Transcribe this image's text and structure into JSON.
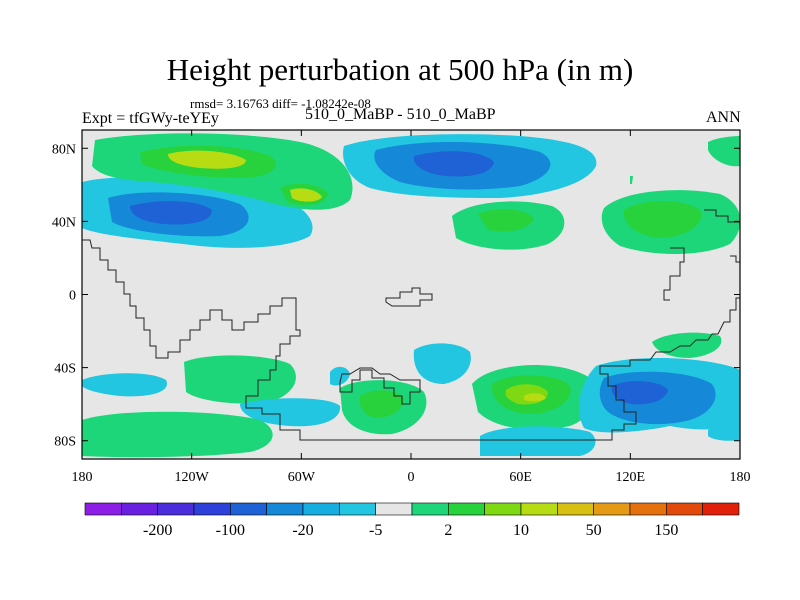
{
  "chart_data": {
    "type": "contour-map",
    "title": "Height perturbation at 500 hPa (in m)",
    "subtitle_left": "Expt = tfGWy-teYEy",
    "subtitle_center": "510_0_MaBP - 510_0_MaBP",
    "subtitle_right": "ANN",
    "stats_text": "rmsd= 3.16763 diff= -1.08242e-08",
    "x_axis": {
      "range": [
        -180,
        180
      ],
      "ticks": [
        -180,
        -120,
        -60,
        0,
        60,
        120,
        180
      ],
      "tick_labels": [
        "180",
        "120W",
        "60W",
        "0",
        "60E",
        "120E",
        "180"
      ]
    },
    "y_axis": {
      "range": [
        -90,
        90
      ],
      "ticks": [
        80,
        40,
        0,
        -40,
        -80
      ],
      "tick_labels": [
        "80N",
        "40N",
        "0",
        "40S",
        "80S"
      ]
    },
    "colorbar": {
      "colors": [
        "#8c1ee6",
        "#6a20e0",
        "#4b2ddc",
        "#2e40da",
        "#1e62d6",
        "#1688d8",
        "#16aee0",
        "#22c6e0",
        "#e6e6e6",
        "#1ed67a",
        "#28d23c",
        "#7ed812",
        "#b8dc14",
        "#d8c012",
        "#e49a14",
        "#e4700e",
        "#e24a0c",
        "#e0200a"
      ],
      "tick_labels": [
        "-200",
        "-100",
        "-20",
        "-5",
        "2",
        "10",
        "50",
        "150"
      ]
    },
    "regions": [
      {
        "name": "NH subpolar band W",
        "color": "#22c6e0"
      },
      {
        "name": "NH green band W",
        "color": "#1ed67a"
      },
      {
        "name": "NH lime maximum",
        "color": "#b8dc14"
      },
      {
        "name": "NH low W",
        "color": "#1e62d6"
      },
      {
        "name": "NH low polar",
        "color": "#1e62d6"
      },
      {
        "name": "NH high 20E",
        "color": "#28d23c"
      },
      {
        "name": "NH high 130E",
        "color": "#28d23c"
      },
      {
        "name": "SH high 50E",
        "color": "#b8dc14"
      },
      {
        "name": "SH low 140E",
        "color": "#1688d8"
      },
      {
        "name": "SH high 120W",
        "color": "#1ed67a"
      },
      {
        "name": "SH high 20W",
        "color": "#28d23c"
      }
    ]
  }
}
